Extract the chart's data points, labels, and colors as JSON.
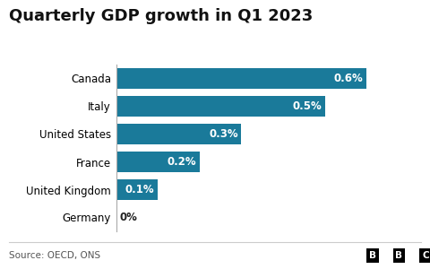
{
  "title": "Quarterly GDP growth in Q1 2023",
  "categories": [
    "Germany",
    "United Kingdom",
    "France",
    "United States",
    "Italy",
    "Canada"
  ],
  "values": [
    0.0,
    0.1,
    0.2,
    0.3,
    0.5,
    0.6
  ],
  "labels": [
    "0%",
    "0.1%",
    "0.2%",
    "0.3%",
    "0.5%",
    "0.6%"
  ],
  "bar_color": "#1a7a9a",
  "background_color": "#ffffff",
  "text_color_inside": "#ffffff",
  "text_color_outside": "#222222",
  "source_text": "Source: OECD, ONS",
  "title_fontsize": 13,
  "label_fontsize": 8.5,
  "tick_fontsize": 8.5,
  "source_fontsize": 7.5,
  "xlim": [
    0,
    0.7
  ]
}
